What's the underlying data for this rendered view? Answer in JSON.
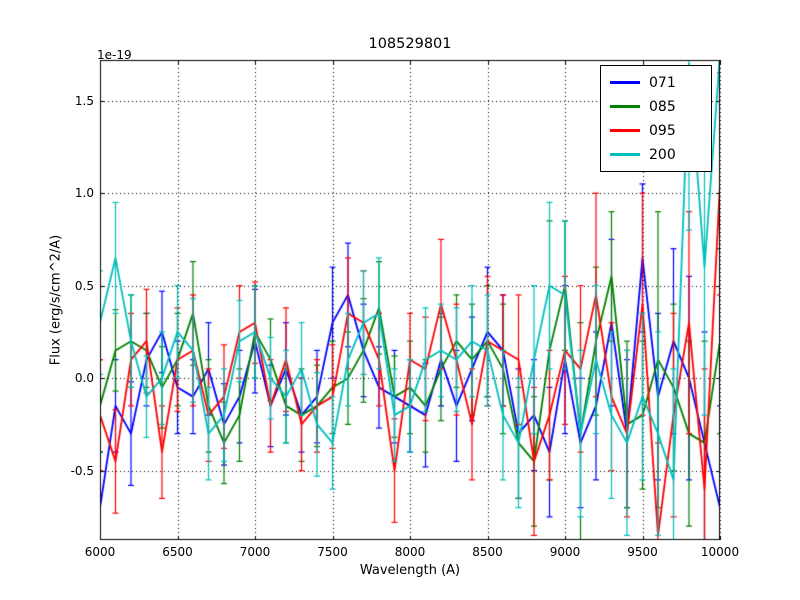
{
  "offset_label": "1e-19",
  "axes": {
    "background": "#ffffff",
    "frame_color": "#000000",
    "grid": true,
    "grid_style": "dotted",
    "xtick_values": [
      6000,
      6500,
      7000,
      7500,
      8000,
      8500,
      9000,
      9500,
      10000
    ],
    "xtick_labels": [
      "6000",
      "6500",
      "7000",
      "7500",
      "8000",
      "8500",
      "9000",
      "9500",
      "10000"
    ],
    "ytick_values": [
      -0.5,
      0.0,
      0.5,
      1.0,
      1.5
    ],
    "ytick_labels": [
      "-0.5",
      "0.0",
      "0.5",
      "1.0",
      "1.5"
    ]
  },
  "legend": {
    "position": "upper right"
  },
  "chart_data": {
    "type": "line",
    "title": "108529801",
    "xlabel": "Wavelength (A)",
    "ylabel": "Flux (erg/s/cm^2/A)",
    "y_offset_factor": "1e-19",
    "xlim": [
      6000,
      10000
    ],
    "ylim": [
      -0.875,
      1.72
    ],
    "x": [
      6000,
      6100,
      6200,
      6300,
      6400,
      6500,
      6600,
      6700,
      6800,
      6900,
      7000,
      7100,
      7200,
      7300,
      7400,
      7500,
      7600,
      7700,
      7800,
      7900,
      8000,
      8100,
      8200,
      8300,
      8400,
      8500,
      8600,
      8700,
      8800,
      8900,
      9000,
      9100,
      9200,
      9300,
      9400,
      9500,
      9600,
      9700,
      9800,
      9900,
      10000
    ],
    "series": [
      {
        "name": "071",
        "color": "#0000ff",
        "values": [
          -0.7,
          -0.15,
          -0.3,
          0.1,
          0.25,
          -0.05,
          -0.1,
          0.05,
          -0.25,
          -0.1,
          0.2,
          -0.15,
          0.05,
          -0.2,
          -0.1,
          0.3,
          0.45,
          0.15,
          -0.05,
          -0.1,
          -0.15,
          -0.2,
          0.1,
          -0.15,
          0.05,
          0.25,
          0.15,
          -0.3,
          -0.2,
          -0.4,
          0.1,
          -0.35,
          -0.15,
          0.3,
          -0.3,
          0.65,
          -0.1,
          0.2,
          0.0,
          -0.35,
          -0.7
        ],
        "errors": [
          0.3,
          0.25,
          0.28,
          0.25,
          0.22,
          0.25,
          0.2,
          0.25,
          0.22,
          0.25,
          0.28,
          0.22,
          0.25,
          0.2,
          0.25,
          0.3,
          0.28,
          0.25,
          0.22,
          0.25,
          0.25,
          0.28,
          0.25,
          0.3,
          0.28,
          0.35,
          0.3,
          0.35,
          0.3,
          0.35,
          0.4,
          0.35,
          0.4,
          0.45,
          0.4,
          0.4,
          0.45,
          0.5,
          0.55,
          0.6,
          0.55
        ]
      },
      {
        "name": "085",
        "color": "#008000",
        "values": [
          -0.15,
          0.15,
          0.2,
          0.15,
          -0.05,
          0.1,
          0.35,
          -0.15,
          -0.35,
          -0.2,
          0.25,
          0.1,
          -0.15,
          -0.2,
          -0.15,
          -0.05,
          0.0,
          0.15,
          0.38,
          -0.1,
          -0.05,
          -0.15,
          0.05,
          0.2,
          0.1,
          0.2,
          0.05,
          -0.35,
          -0.45,
          0.15,
          0.5,
          -0.3,
          0.2,
          0.55,
          -0.25,
          -0.2,
          0.1,
          -0.05,
          -0.3,
          -0.35,
          0.2
        ],
        "errors": [
          0.25,
          0.22,
          0.25,
          0.2,
          0.22,
          0.25,
          0.28,
          0.25,
          0.22,
          0.25,
          0.25,
          0.22,
          0.2,
          0.25,
          0.22,
          0.25,
          0.25,
          0.28,
          0.25,
          0.22,
          0.25,
          0.25,
          0.28,
          0.25,
          0.3,
          0.3,
          0.35,
          0.3,
          0.35,
          0.7,
          0.35,
          0.6,
          0.4,
          0.35,
          0.45,
          0.4,
          0.8,
          0.45,
          0.5,
          0.55,
          0.5
        ]
      },
      {
        "name": "095",
        "color": "#ff0000",
        "values": [
          -0.2,
          -0.45,
          0.1,
          0.2,
          -0.4,
          0.1,
          0.15,
          -0.2,
          -0.1,
          0.25,
          0.3,
          -0.15,
          0.1,
          -0.25,
          -0.15,
          -0.1,
          0.35,
          0.3,
          0.1,
          -0.5,
          0.1,
          0.05,
          0.4,
          0.1,
          -0.25,
          0.2,
          0.15,
          0.1,
          -0.45,
          -0.2,
          0.15,
          0.05,
          0.45,
          -0.1,
          -0.3,
          0.4,
          -0.85,
          -0.2,
          0.3,
          -0.6,
          1.05
        ],
        "errors": [
          0.3,
          0.28,
          0.25,
          0.28,
          0.25,
          0.28,
          0.3,
          0.25,
          0.28,
          0.25,
          0.22,
          0.25,
          0.28,
          0.25,
          0.25,
          0.28,
          0.3,
          0.28,
          0.25,
          0.28,
          0.25,
          0.28,
          0.35,
          0.3,
          0.3,
          0.35,
          0.3,
          0.35,
          0.4,
          0.35,
          0.4,
          0.45,
          0.55,
          0.4,
          0.45,
          0.6,
          0.5,
          0.55,
          0.6,
          0.65,
          0.6
        ]
      },
      {
        "name": "200",
        "color": "#00bfbf",
        "values": [
          0.3,
          0.65,
          0.2,
          -0.1,
          0.0,
          0.25,
          0.15,
          -0.3,
          -0.2,
          0.2,
          0.25,
          0.0,
          -0.1,
          0.05,
          -0.25,
          -0.35,
          0.1,
          0.3,
          0.35,
          -0.2,
          -0.15,
          0.1,
          0.15,
          0.1,
          0.2,
          0.15,
          -0.2,
          -0.35,
          0.1,
          0.5,
          0.45,
          -0.3,
          0.1,
          -0.2,
          -0.35,
          -0.1,
          -0.3,
          -0.55,
          1.7,
          0.6,
          1.75
        ],
        "errors": [
          0.28,
          0.3,
          0.25,
          0.22,
          0.25,
          0.25,
          0.28,
          0.25,
          0.25,
          0.22,
          0.25,
          0.22,
          0.25,
          0.25,
          0.28,
          0.25,
          0.25,
          0.28,
          0.3,
          0.25,
          0.25,
          0.28,
          0.25,
          0.28,
          0.3,
          0.3,
          0.35,
          0.35,
          0.4,
          0.45,
          0.4,
          0.45,
          0.4,
          0.45,
          0.5,
          0.45,
          0.55,
          0.6,
          0.9,
          0.8,
          0.85
        ]
      }
    ]
  }
}
